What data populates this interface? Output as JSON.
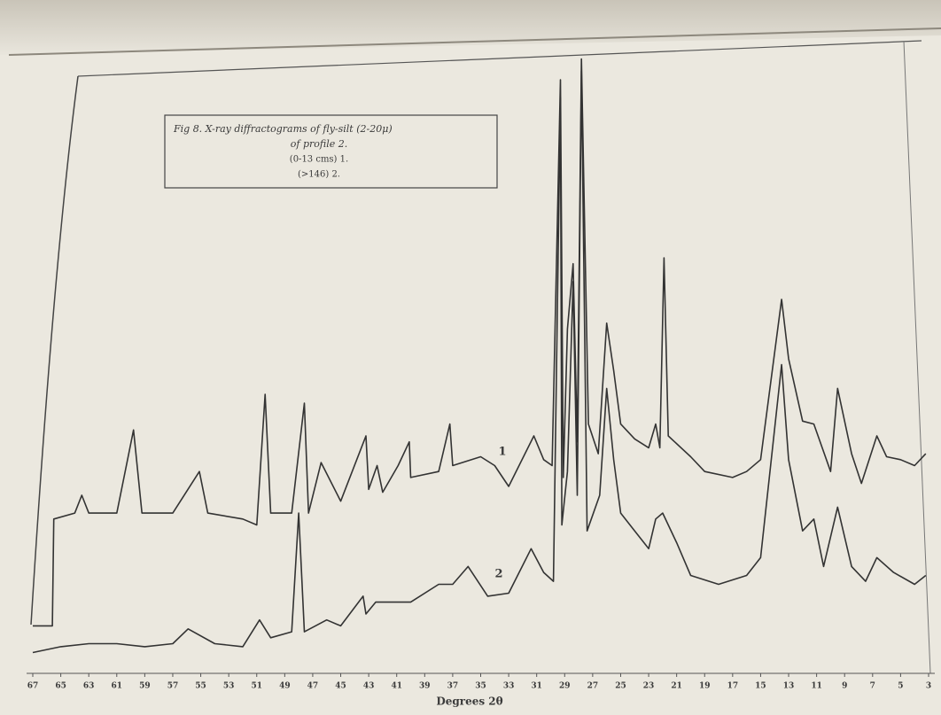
{
  "chart_data": {
    "type": "line",
    "title": "Fig 8. X-ray diffractograms of fly-silt (2-20μ)",
    "subtitle": "of profile 2.",
    "annotations": [
      "(0-13 cms) 1.",
      "(>146) 2."
    ],
    "xlabel": "Degrees 2θ",
    "xlim": [
      67,
      3
    ],
    "ylim": [
      0,
      105
    ],
    "xticks": [
      67,
      65,
      63,
      61,
      59,
      57,
      55,
      53,
      51,
      49,
      47,
      45,
      43,
      41,
      39,
      37,
      35,
      33,
      31,
      29,
      27,
      25,
      23,
      21,
      19,
      17,
      15,
      13,
      11,
      9,
      7,
      5,
      3
    ],
    "grid": false,
    "series": [
      {
        "name": "1",
        "color": "#333333",
        "x": [
          67,
          65.6,
          65.5,
          64,
          63.5,
          63,
          61,
          59.8,
          59.2,
          57,
          55.1,
          54.5,
          52,
          51,
          50.4,
          50,
          48.5,
          47.6,
          47.3,
          46.4,
          45,
          43.2,
          43,
          42.4,
          42,
          40.9,
          40.1,
          40,
          38,
          37.2,
          37,
          35,
          34,
          33,
          31.2,
          30.5,
          29.9,
          29.3,
          29.1,
          28.8,
          28.4,
          28.1,
          27.8,
          27.3,
          26.6,
          26,
          25.5,
          25,
          24,
          23,
          22.5,
          22.2,
          21.9,
          21.6,
          20,
          19,
          17,
          16,
          15,
          13.5,
          13,
          12,
          11.2,
          10,
          9.5,
          8.5,
          7.8,
          6.7,
          6,
          5,
          4,
          3.2
        ],
        "values": [
          8,
          8,
          26,
          27,
          30,
          27,
          27,
          41,
          27,
          27,
          34,
          27,
          26,
          25,
          47,
          27,
          27,
          45.5,
          27,
          35.5,
          29,
          40,
          31,
          35,
          30.5,
          35,
          39,
          33,
          34,
          42,
          35,
          36.5,
          35,
          31.5,
          40,
          36,
          35,
          100,
          33,
          58,
          69,
          39,
          103.5,
          42,
          37,
          59,
          51,
          42,
          39.5,
          38,
          42,
          38,
          70,
          40,
          36.5,
          34,
          33,
          34,
          36,
          63,
          53,
          42.5,
          42,
          34,
          48,
          37,
          32,
          40,
          36.5,
          36,
          35,
          37
        ]
      },
      {
        "name": "2",
        "color": "#333333",
        "x": [
          67,
          65,
          63,
          61,
          59,
          57,
          55.9,
          54,
          52,
          50.8,
          50,
          48.5,
          48,
          47.6,
          46,
          45,
          43.4,
          43.2,
          42.5,
          40,
          38,
          37,
          35.9,
          34.5,
          33,
          31.4,
          30.5,
          29.8,
          29.3,
          29.2,
          28.8,
          28.4,
          28.1,
          27.8,
          27.4,
          26.5,
          26,
          25.5,
          25,
          24,
          23,
          22.5,
          22,
          21,
          20,
          18,
          16,
          15,
          13.5,
          13,
          12,
          11.2,
          10.5,
          9.5,
          8.5,
          7.5,
          6.7,
          5.5,
          4,
          3.2
        ],
        "values": [
          3.5,
          4.5,
          5,
          5,
          4.5,
          5,
          7.5,
          5,
          4.5,
          9,
          6,
          7,
          27,
          7,
          9,
          8,
          13,
          10,
          12,
          12,
          15,
          15,
          18,
          13,
          13.5,
          21,
          17,
          15.5,
          97,
          25,
          34,
          66,
          30,
          101.5,
          24,
          30,
          48,
          36,
          27,
          24,
          21,
          26,
          27,
          22,
          16.5,
          15,
          16.5,
          19.5,
          52,
          36,
          24,
          26,
          18,
          28,
          18,
          15.5,
          19.5,
          17,
          15,
          16.5
        ]
      }
    ]
  }
}
